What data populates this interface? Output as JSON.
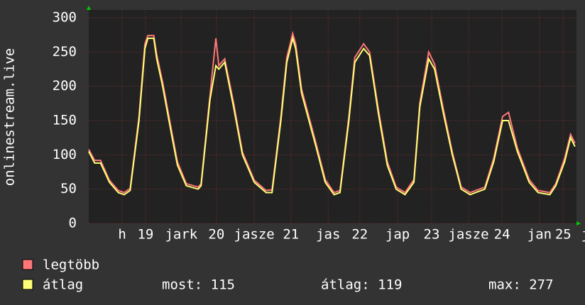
{
  "chart_data": {
    "type": "line",
    "y_label": "onlinestream.live",
    "x": [
      0,
      2,
      4,
      7,
      10,
      12,
      14,
      17,
      19,
      20,
      22,
      23,
      25,
      28,
      30,
      33,
      37,
      38,
      41,
      43,
      44,
      46,
      49,
      52,
      56,
      60,
      62,
      65,
      67,
      69,
      70,
      72,
      77,
      80,
      83,
      85,
      88,
      90,
      93,
      95,
      98,
      101,
      104,
      107,
      110,
      112,
      115,
      117,
      120,
      123,
      126,
      129,
      134,
      137,
      140,
      142,
      145,
      149,
      152,
      156,
      158,
      161,
      163,
      164.5
    ],
    "series": [
      {
        "name": "legtöbb",
        "color": "#ff7777",
        "values": [
          108,
          92,
          92,
          63,
          48,
          45,
          51,
          156,
          262,
          274,
          274,
          246,
          206,
          136,
          90,
          58,
          53,
          58,
          186,
          270,
          230,
          240,
          176,
          104,
          63,
          48,
          49,
          156,
          242,
          277,
          262,
          196,
          115,
          64,
          45,
          48,
          156,
          242,
          262,
          250,
          166,
          90,
          53,
          45,
          64,
          176,
          250,
          232,
          166,
          104,
          53,
          45,
          53,
          95,
          156,
          162,
          110,
          64,
          48,
          45,
          58,
          95,
          130,
          117
        ]
      },
      {
        "name": "átlag",
        "color": "#ffff77",
        "values": [
          105,
          88,
          88,
          60,
          45,
          42,
          48,
          150,
          255,
          270,
          270,
          240,
          200,
          130,
          85,
          55,
          50,
          55,
          180,
          230,
          225,
          235,
          170,
          100,
          60,
          45,
          45,
          150,
          235,
          270,
          255,
          190,
          110,
          60,
          42,
          45,
          150,
          235,
          255,
          245,
          160,
          85,
          50,
          42,
          60,
          170,
          240,
          225,
          160,
          100,
          50,
          42,
          50,
          90,
          150,
          150,
          105,
          60,
          45,
          42,
          55,
          90,
          125,
          112
        ]
      }
    ],
    "xlim": [
      0,
      165
    ],
    "ylim": [
      0,
      300
    ],
    "yticks": [
      0,
      50,
      100,
      150,
      200,
      250,
      300
    ],
    "xticks": [
      {
        "value": 11.3,
        "label": "h"
      },
      {
        "value": 19.2,
        "label": "19"
      },
      {
        "value": 31.3,
        "label": "jark"
      },
      {
        "value": 43.2,
        "label": "20"
      },
      {
        "value": 56,
        "label": "jasze"
      },
      {
        "value": 68.4,
        "label": "21"
      },
      {
        "value": 81,
        "label": "jas"
      },
      {
        "value": 91.7,
        "label": "22"
      },
      {
        "value": 104.5,
        "label": "jap"
      },
      {
        "value": 116,
        "label": "23"
      },
      {
        "value": 128.5,
        "label": "jasze"
      },
      {
        "value": 139.8,
        "label": "24"
      },
      {
        "value": 152.5,
        "label": "jan"
      },
      {
        "value": 160.5,
        "label": "25"
      },
      {
        "value": 168,
        "label": "j"
      }
    ],
    "grid": true,
    "stats": [
      "most: 115",
      "átlag: 119",
      "max: 277"
    ]
  }
}
